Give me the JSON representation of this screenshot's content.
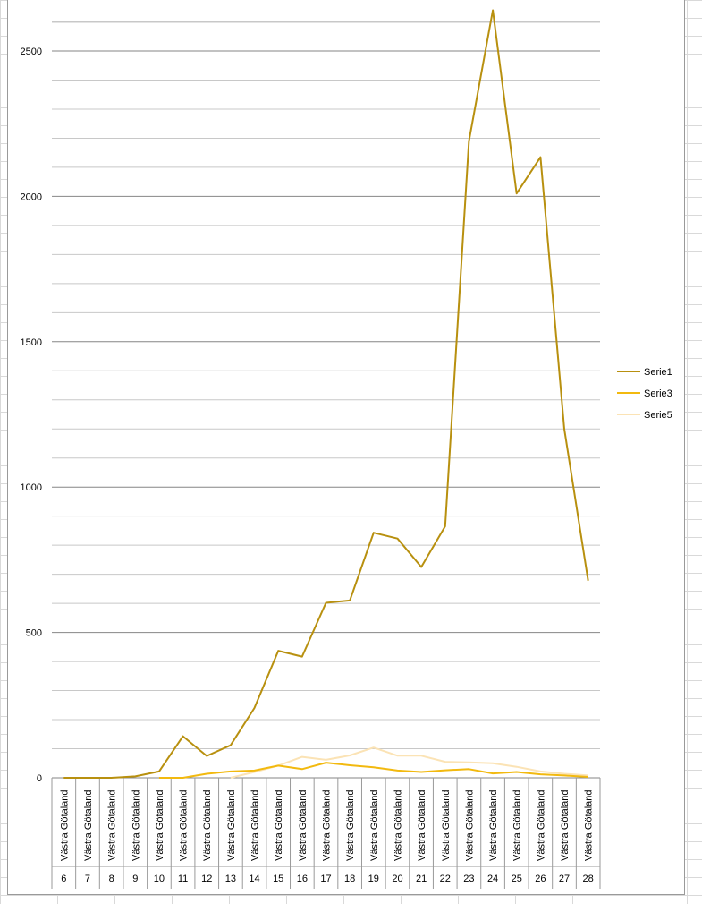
{
  "chart_data": {
    "type": "line",
    "title": "",
    "xlabel": "",
    "ylabel": "",
    "ylim": [
      0,
      2650
    ],
    "yticks": [
      0,
      500,
      1000,
      1500,
      2000,
      2500
    ],
    "grid": true,
    "legend_position": "right",
    "category_label": "Västra Götaland",
    "x": [
      "6",
      "7",
      "8",
      "9",
      "10",
      "11",
      "12",
      "13",
      "14",
      "15",
      "16",
      "17",
      "18",
      "19",
      "20",
      "21",
      "22",
      "23",
      "24",
      "25",
      "26",
      "27",
      "28"
    ],
    "series": [
      {
        "name": "Serie1",
        "color": "#b8900f",
        "values": [
          0,
          0,
          0,
          5,
          22,
          143,
          75,
          112,
          240,
          437,
          417,
          602,
          610,
          843,
          823,
          725,
          865,
          2190,
          2640,
          2010,
          2135,
          1200,
          678
        ]
      },
      {
        "name": "Serie3",
        "color": "#f2b90f",
        "values": [
          null,
          null,
          null,
          null,
          0,
          0,
          14,
          22,
          25,
          42,
          30,
          52,
          43,
          36,
          25,
          20,
          26,
          30,
          15,
          20,
          12,
          8,
          3
        ]
      },
      {
        "name": "Serie5",
        "color": "#fbe3b5",
        "values": [
          null,
          null,
          null,
          null,
          null,
          null,
          null,
          0,
          20,
          42,
          72,
          62,
          77,
          104,
          76,
          76,
          55,
          53,
          50,
          38,
          22,
          14,
          8
        ]
      }
    ]
  }
}
